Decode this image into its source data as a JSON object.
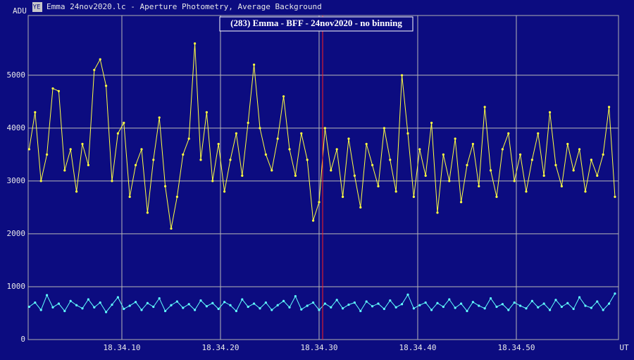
{
  "window_title": "Emma 24nov2020.lc - Aperture Photometry, Average Background",
  "chart_data": {
    "type": "line",
    "title": "(283) Emma - BFF - 24nov2020 - no binning",
    "y_label": "ADU",
    "x_label": "UT",
    "x": [
      0.6,
      1.2,
      1.8,
      2.4,
      3.0,
      3.6,
      4.2,
      4.8,
      5.4,
      6.0,
      6.6,
      7.2,
      7.8,
      8.4,
      9.0,
      9.6,
      10.2,
      10.8,
      11.4,
      12.0,
      12.6,
      13.2,
      13.8,
      14.4,
      15.0,
      15.6,
      16.2,
      16.8,
      17.4,
      18.0,
      18.6,
      19.2,
      19.8,
      20.4,
      21.0,
      21.6,
      22.2,
      22.8,
      23.4,
      24.0,
      24.6,
      25.2,
      25.8,
      26.4,
      27.0,
      27.6,
      28.2,
      28.8,
      29.4,
      30.0,
      30.6,
      31.2,
      31.8,
      32.4,
      33.0,
      33.6,
      34.2,
      34.8,
      35.4,
      36.0,
      36.6,
      37.2,
      37.8,
      38.4,
      39.0,
      39.6,
      40.2,
      40.8,
      41.4,
      42.0,
      42.6,
      43.2,
      43.8,
      44.4,
      45.0,
      45.6,
      46.2,
      46.8,
      47.4,
      48.0,
      48.6,
      49.2,
      49.8,
      50.4,
      51.0,
      51.6,
      52.2,
      52.8,
      53.4,
      54.0,
      54.6,
      55.2,
      55.8,
      56.4,
      57.0,
      57.6,
      58.2,
      58.8,
      59.4,
      60.0
    ],
    "series": [
      {
        "color": "#ffff40",
        "values": [
          3600,
          4300,
          3000,
          3500,
          4750,
          4700,
          3200,
          3600,
          2800,
          3700,
          3300,
          5100,
          5300,
          4800,
          3000,
          3900,
          4100,
          2700,
          3300,
          3600,
          2400,
          3400,
          4200,
          2900,
          2100,
          2700,
          3500,
          3800,
          5600,
          3400,
          4300,
          3000,
          3700,
          2800,
          3400,
          3900,
          3100,
          4100,
          5200,
          4000,
          3500,
          3200,
          3800,
          4600,
          3600,
          3100,
          3900,
          3400,
          2250,
          2600,
          4000,
          3200,
          3600,
          2700,
          3800,
          3100,
          2500,
          3700,
          3300,
          2900,
          4000,
          3400,
          2800,
          5000,
          3900,
          2700,
          3600,
          3100,
          4100,
          2400,
          3500,
          3000,
          3800,
          2600,
          3300,
          3700,
          2900,
          4400,
          3200,
          2700,
          3600,
          3900,
          3000,
          3500,
          2800,
          3400,
          3900,
          3100,
          4300,
          3300,
          2900,
          3700,
          3200,
          3600,
          2800,
          3400,
          3100,
          3500,
          4400,
          2700
        ]
      },
      {
        "color": "#60ffff",
        "values": [
          620,
          700,
          560,
          840,
          610,
          680,
          540,
          730,
          650,
          590,
          760,
          610,
          700,
          520,
          660,
          800,
          580,
          640,
          710,
          560,
          690,
          620,
          780,
          540,
          650,
          720,
          600,
          670,
          560,
          740,
          630,
          690,
          580,
          710,
          650,
          540,
          760,
          620,
          680,
          590,
          700,
          560,
          650,
          730,
          610,
          820,
          570,
          640,
          700,
          560,
          680,
          610,
          750,
          590,
          660,
          700,
          540,
          720,
          630,
          680,
          580,
          740,
          610,
          670,
          850,
          590,
          650,
          700,
          560,
          690,
          620,
          760,
          600,
          680,
          540,
          710,
          640,
          590,
          780,
          620,
          670,
          560,
          700,
          640,
          590,
          730,
          610,
          680,
          560,
          750,
          620,
          690,
          580,
          800,
          640,
          600,
          720,
          560,
          680,
          870
        ]
      }
    ],
    "xlim": [
      0.5,
      60.36
    ],
    "xticks": [
      {
        "value": 10,
        "label": "18.34.10"
      },
      {
        "value": 20,
        "label": "18.34.20"
      },
      {
        "value": 30,
        "label": "18.34.30"
      },
      {
        "value": 40,
        "label": "18.34.40"
      },
      {
        "value": 50,
        "label": "18.34.50"
      }
    ],
    "ylim": [
      0,
      6130
    ],
    "yticks": [
      0,
      1000,
      2000,
      3000,
      4000,
      5000
    ],
    "grid": true,
    "cursor_x": 30.36,
    "cursor_color": "#ff2020"
  }
}
